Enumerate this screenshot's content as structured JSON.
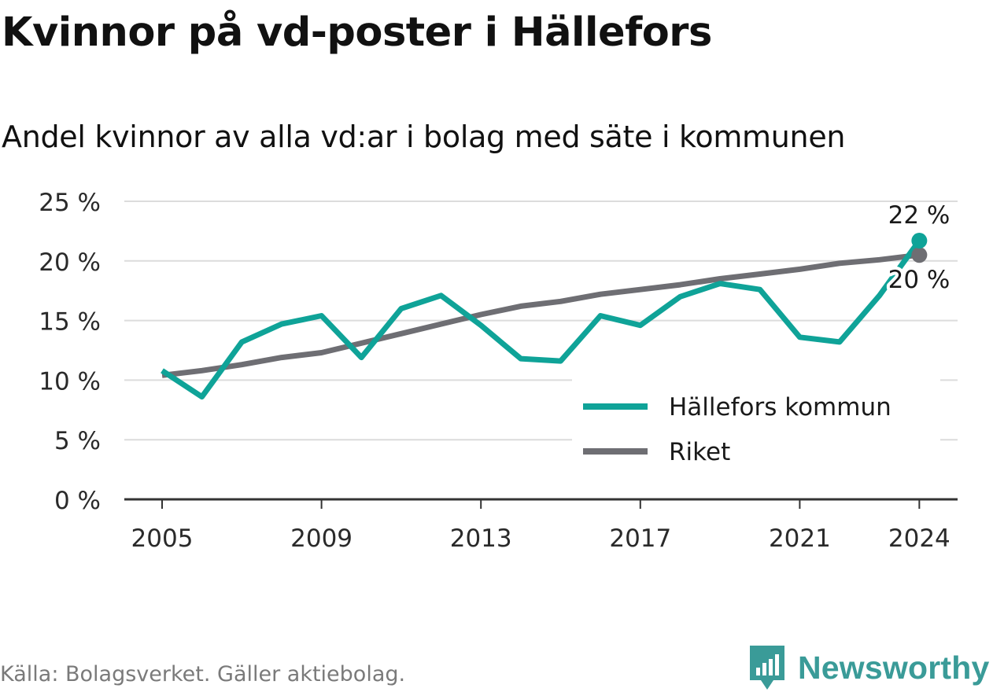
{
  "title": "Kvinnor på vd-poster i Hällefors",
  "subtitle": "Andel kvinnor av alla vd:ar i bolag med säte i kommunen",
  "source": "Källa: Bolagsverket. Gäller aktiebolag.",
  "brand": {
    "name": "Newsworthy",
    "icon": "newsworthy-logo-icon",
    "color": "#3a9b98"
  },
  "chart_data": {
    "type": "line",
    "x": [
      2005,
      2006,
      2007,
      2008,
      2009,
      2010,
      2011,
      2012,
      2013,
      2014,
      2015,
      2016,
      2017,
      2018,
      2019,
      2020,
      2021,
      2022,
      2023,
      2024
    ],
    "series": [
      {
        "name": "Hällefors kommun",
        "color": "#0fa398",
        "values": [
          10.8,
          8.6,
          13.2,
          14.7,
          15.4,
          11.9,
          16.0,
          17.1,
          14.6,
          11.8,
          11.6,
          15.4,
          14.6,
          17.0,
          18.1,
          17.6,
          13.6,
          13.2,
          17.1,
          21.7
        ],
        "end_label": "22 %"
      },
      {
        "name": "Riket",
        "color": "#6e6e73",
        "values": [
          10.4,
          10.8,
          11.3,
          11.9,
          12.3,
          13.1,
          13.9,
          14.7,
          15.5,
          16.2,
          16.6,
          17.2,
          17.6,
          18.0,
          18.5,
          18.9,
          19.3,
          19.8,
          20.1,
          20.5
        ],
        "end_label": "20 %"
      }
    ],
    "y_ticks": [
      0,
      5,
      10,
      15,
      20,
      25
    ],
    "y_tick_labels": [
      "0 %",
      "5 %",
      "10 %",
      "15 %",
      "20 %",
      "25 %"
    ],
    "x_ticks": [
      2005,
      2009,
      2013,
      2017,
      2021,
      2024
    ],
    "x_tick_labels": [
      "2005",
      "2009",
      "2013",
      "2017",
      "2021",
      "2024"
    ],
    "ylim": [
      0,
      25
    ],
    "xlim": [
      2004,
      2025
    ],
    "grid": true,
    "legend_position": "bottom-right"
  }
}
